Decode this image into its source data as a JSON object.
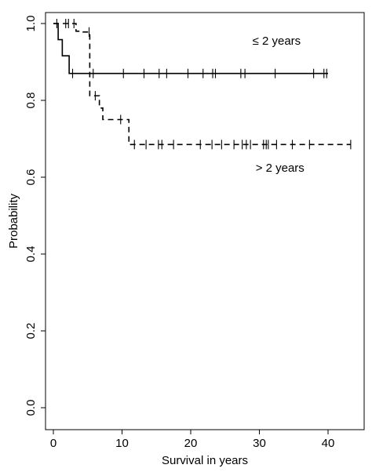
{
  "chart_data": {
    "type": "line",
    "subtype": "kaplan-meier step",
    "xlabel": "Survival in years",
    "ylabel": "Probability",
    "xlim": [
      0,
      44
    ],
    "ylim": [
      0,
      1.05
    ],
    "x_ticks": [
      0,
      10,
      20,
      30,
      40
    ],
    "x_tick_labels": [
      "0",
      "10",
      "20",
      "30",
      "40"
    ],
    "y_ticks": [
      0.0,
      0.2,
      0.4,
      0.6,
      0.8,
      1.0
    ],
    "y_tick_labels": [
      "0.0",
      "0.2",
      "0.4",
      "0.6",
      "0.8",
      "1.0"
    ],
    "grid": false,
    "annotations": [
      {
        "text": "≤ 2 years",
        "x": 32.5,
        "y": 0.955
      },
      {
        "text": "> 2 years",
        "x": 33,
        "y": 0.625
      }
    ],
    "series": [
      {
        "line_style": "solid",
        "color": "#000000",
        "steps": [
          [
            0,
            1.0
          ],
          [
            0.7,
            0.958
          ],
          [
            1.3,
            0.916
          ],
          [
            2.3,
            0.87
          ],
          [
            40,
            0.87
          ]
        ],
        "censored_x": [
          0.5,
          2.8,
          5.8,
          10.2,
          13.2,
          15.4,
          16.5,
          19.6,
          21.8,
          23.2,
          23.6,
          27.3,
          27.9,
          32.3,
          37.9,
          39.4,
          39.8
        ]
      },
      {
        "line_style": "dashed",
        "color": "#000000",
        "steps": [
          [
            0,
            1.0
          ],
          [
            3.3,
            0.98
          ],
          [
            4.0,
            0.978
          ],
          [
            5.3,
            0.812
          ],
          [
            6.7,
            0.78
          ],
          [
            7.2,
            0.75
          ],
          [
            10.3,
            0.75
          ],
          [
            11.0,
            0.685
          ],
          [
            43.3,
            0.685
          ]
        ],
        "censored_x": [
          1.8,
          2.2,
          3.0,
          5.2,
          6.1,
          9.8,
          11.8,
          13.5,
          15.3,
          15.8,
          17.5,
          21.4,
          23.1,
          24.5,
          26.3,
          27.5,
          28.1,
          28.7,
          30.6,
          31.0,
          31.3,
          32.5,
          34.8,
          37.3,
          43.3
        ]
      }
    ]
  }
}
